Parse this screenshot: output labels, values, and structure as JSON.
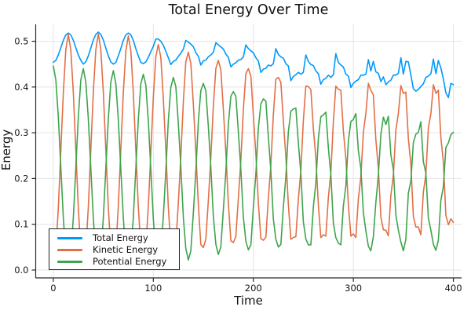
{
  "figure": {
    "title": "Total Energy Over Time",
    "xlabel": "Time",
    "ylabel": "Energy",
    "background_color": "#ffffff"
  },
  "legend": {
    "position": "bottom-left",
    "items": [
      {
        "label": "Total Energy",
        "color": "#009AFA"
      },
      {
        "label": "Kinetic Energy",
        "color": "#E26F46"
      },
      {
        "label": "Potential Energy",
        "color": "#3DA44D"
      }
    ]
  },
  "chart_data": {
    "type": "line",
    "title": "Total Energy Over Time",
    "xlabel": "Time",
    "ylabel": "Energy",
    "grid": true,
    "grid_color": "#E4E4E4",
    "axis_color": "#2A2A2A",
    "tick_label_color": "#151515",
    "legend_position": "bottom-left",
    "xlim": [
      -17.6,
      408.2
    ],
    "ylim": [
      -0.0172,
      0.537
    ],
    "xticks": [
      0,
      100,
      200,
      300,
      400
    ],
    "xtick_labels": [
      "0",
      "100",
      "200",
      "300",
      "400"
    ],
    "yticks": [
      0.0,
      0.1,
      0.2,
      0.3,
      0.4,
      0.5
    ],
    "ytick_labels": [
      "0.0",
      "0.1",
      "0.2",
      "0.3",
      "0.4",
      "0.5"
    ],
    "x": [
      0,
      2.5,
      5,
      7.5,
      10,
      12.5,
      15,
      17.5,
      20,
      22.5,
      25,
      27.5,
      30,
      32.5,
      35,
      37.5,
      40,
      42.5,
      45,
      47.5,
      50,
      52.5,
      55,
      57.5,
      60,
      62.5,
      65,
      67.5,
      70,
      72.5,
      75,
      77.5,
      80,
      82.5,
      85,
      87.5,
      90,
      92.5,
      95,
      97.5,
      100,
      102.5,
      105,
      107.5,
      110,
      112.5,
      115,
      117.5,
      120,
      122.5,
      125,
      127.5,
      130,
      132.5,
      135,
      137.5,
      140,
      142.5,
      145,
      147.5,
      150,
      152.5,
      155,
      157.5,
      160,
      162.5,
      165,
      167.5,
      170,
      172.5,
      175,
      177.5,
      180,
      182.5,
      185,
      187.5,
      190,
      192.5,
      195,
      197.5,
      200,
      202.5,
      205,
      207.5,
      210,
      212.5,
      215,
      217.5,
      220,
      222.5,
      225,
      227.5,
      230,
      232.5,
      235,
      237.5,
      240,
      242.5,
      245,
      247.5,
      250,
      252.5,
      255,
      257.5,
      260,
      262.5,
      265,
      267.5,
      270,
      272.5,
      275,
      277.5,
      280,
      282.5,
      285,
      287.5,
      290,
      292.5,
      295,
      297.5,
      300,
      302.5,
      305,
      307.5,
      310,
      312.5,
      315,
      317.5,
      320,
      322.5,
      325,
      327.5,
      330,
      332.5,
      335,
      337.5,
      340,
      342.5,
      345,
      347.5,
      350,
      352.5,
      355,
      357.5,
      360,
      362.5,
      365,
      367.5,
      370,
      372.5,
      375,
      377.5,
      380,
      382.5,
      385,
      387.5,
      390,
      392.5,
      395,
      397.5,
      400
    ],
    "series": [
      {
        "name": "Total Energy",
        "color": "#009AFA",
        "values": [
          0.454,
          0.458,
          0.47,
          0.486,
          0.502,
          0.514,
          0.518,
          0.514,
          0.502,
          0.486,
          0.47,
          0.458,
          0.45,
          0.455,
          0.468,
          0.485,
          0.503,
          0.515,
          0.52,
          0.515,
          0.503,
          0.485,
          0.468,
          0.455,
          0.45,
          0.454,
          0.468,
          0.484,
          0.502,
          0.514,
          0.518,
          0.514,
          0.502,
          0.484,
          0.468,
          0.454,
          0.451,
          0.455,
          0.465,
          0.477,
          0.489,
          0.505,
          0.505,
          0.5,
          0.491,
          0.478,
          0.464,
          0.449,
          0.456,
          0.459,
          0.467,
          0.474,
          0.483,
          0.502,
          0.498,
          0.494,
          0.488,
          0.475,
          0.467,
          0.448,
          0.457,
          0.459,
          0.466,
          0.47,
          0.476,
          0.497,
          0.492,
          0.488,
          0.483,
          0.472,
          0.465,
          0.444,
          0.45,
          0.453,
          0.459,
          0.46,
          0.466,
          0.492,
          0.484,
          0.479,
          0.475,
          0.464,
          0.457,
          0.432,
          0.439,
          0.441,
          0.448,
          0.446,
          0.451,
          0.484,
          0.471,
          0.466,
          0.463,
          0.451,
          0.446,
          0.414,
          0.423,
          0.427,
          0.432,
          0.428,
          0.432,
          0.47,
          0.456,
          0.449,
          0.447,
          0.435,
          0.429,
          0.406,
          0.416,
          0.419,
          0.426,
          0.421,
          0.427,
          0.473,
          0.454,
          0.448,
          0.444,
          0.428,
          0.424,
          0.399,
          0.408,
          0.413,
          0.416,
          0.426,
          0.426,
          0.428,
          0.46,
          0.435,
          0.456,
          0.433,
          0.43,
          0.412,
          0.422,
          0.405,
          0.411,
          0.415,
          0.426,
          0.426,
          0.43,
          0.464,
          0.428,
          0.456,
          0.455,
          0.426,
          0.396,
          0.391,
          0.395,
          0.401,
          0.407,
          0.421,
          0.424,
          0.429,
          0.461,
          0.429,
          0.458,
          0.442,
          0.418,
          0.387,
          0.377,
          0.408,
          0.405
        ]
      },
      {
        "name": "Kinetic Energy",
        "color": "#E26F46",
        "values": [
          0.008,
          0.042,
          0.135,
          0.262,
          0.388,
          0.481,
          0.515,
          0.481,
          0.388,
          0.262,
          0.135,
          0.042,
          0.01,
          0.044,
          0.137,
          0.263,
          0.39,
          0.482,
          0.516,
          0.482,
          0.39,
          0.263,
          0.137,
          0.044,
          0.014,
          0.047,
          0.139,
          0.263,
          0.388,
          0.479,
          0.512,
          0.479,
          0.388,
          0.263,
          0.139,
          0.047,
          0.023,
          0.051,
          0.141,
          0.255,
          0.377,
          0.466,
          0.493,
          0.464,
          0.373,
          0.26,
          0.138,
          0.05,
          0.035,
          0.058,
          0.147,
          0.25,
          0.369,
          0.455,
          0.476,
          0.452,
          0.363,
          0.258,
          0.142,
          0.056,
          0.049,
          0.067,
          0.152,
          0.246,
          0.359,
          0.441,
          0.458,
          0.438,
          0.352,
          0.257,
          0.146,
          0.064,
          0.06,
          0.073,
          0.156,
          0.239,
          0.35,
          0.429,
          0.44,
          0.424,
          0.339,
          0.255,
          0.147,
          0.069,
          0.065,
          0.072,
          0.156,
          0.228,
          0.339,
          0.417,
          0.421,
          0.41,
          0.324,
          0.249,
          0.144,
          0.067,
          0.071,
          0.073,
          0.155,
          0.218,
          0.326,
          0.402,
          0.401,
          0.394,
          0.309,
          0.244,
          0.141,
          0.071,
          0.077,
          0.074,
          0.159,
          0.214,
          0.325,
          0.402,
          0.395,
          0.393,
          0.304,
          0.244,
          0.142,
          0.074,
          0.079,
          0.071,
          0.155,
          0.204,
          0.301,
          0.343,
          0.408,
          0.393,
          0.383,
          0.285,
          0.222,
          0.115,
          0.088,
          0.087,
          0.075,
          0.163,
          0.207,
          0.306,
          0.343,
          0.403,
          0.386,
          0.389,
          0.287,
          0.231,
          0.117,
          0.094,
          0.094,
          0.077,
          0.17,
          0.209,
          0.311,
          0.342,
          0.405,
          0.386,
          0.393,
          0.29,
          0.236,
          0.119,
          0.099,
          0.112,
          0.104
        ]
      },
      {
        "name": "Potential Energy",
        "color": "#3DA44D",
        "values": [
          0.446,
          0.416,
          0.335,
          0.224,
          0.114,
          0.033,
          0.003,
          0.033,
          0.114,
          0.224,
          0.335,
          0.416,
          0.44,
          0.411,
          0.331,
          0.222,
          0.113,
          0.033,
          0.004,
          0.033,
          0.113,
          0.222,
          0.331,
          0.411,
          0.436,
          0.407,
          0.329,
          0.221,
          0.114,
          0.035,
          0.006,
          0.035,
          0.114,
          0.221,
          0.329,
          0.407,
          0.428,
          0.404,
          0.324,
          0.222,
          0.112,
          0.039,
          0.012,
          0.036,
          0.118,
          0.218,
          0.326,
          0.399,
          0.421,
          0.401,
          0.32,
          0.224,
          0.114,
          0.047,
          0.022,
          0.042,
          0.125,
          0.217,
          0.325,
          0.392,
          0.408,
          0.392,
          0.314,
          0.224,
          0.117,
          0.056,
          0.034,
          0.05,
          0.131,
          0.215,
          0.319,
          0.38,
          0.39,
          0.38,
          0.303,
          0.221,
          0.116,
          0.063,
          0.044,
          0.055,
          0.136,
          0.209,
          0.31,
          0.363,
          0.374,
          0.369,
          0.292,
          0.218,
          0.112,
          0.067,
          0.05,
          0.056,
          0.139,
          0.202,
          0.302,
          0.347,
          0.352,
          0.354,
          0.277,
          0.21,
          0.106,
          0.068,
          0.055,
          0.055,
          0.138,
          0.191,
          0.288,
          0.335,
          0.339,
          0.345,
          0.267,
          0.207,
          0.102,
          0.071,
          0.059,
          0.055,
          0.14,
          0.184,
          0.282,
          0.325,
          0.329,
          0.342,
          0.261,
          0.222,
          0.125,
          0.085,
          0.052,
          0.042,
          0.073,
          0.148,
          0.208,
          0.297,
          0.334,
          0.318,
          0.336,
          0.252,
          0.219,
          0.12,
          0.087,
          0.061,
          0.042,
          0.067,
          0.168,
          0.195,
          0.279,
          0.297,
          0.301,
          0.324,
          0.237,
          0.212,
          0.113,
          0.087,
          0.056,
          0.043,
          0.065,
          0.152,
          0.182,
          0.268,
          0.278,
          0.296,
          0.301
        ]
      }
    ]
  }
}
